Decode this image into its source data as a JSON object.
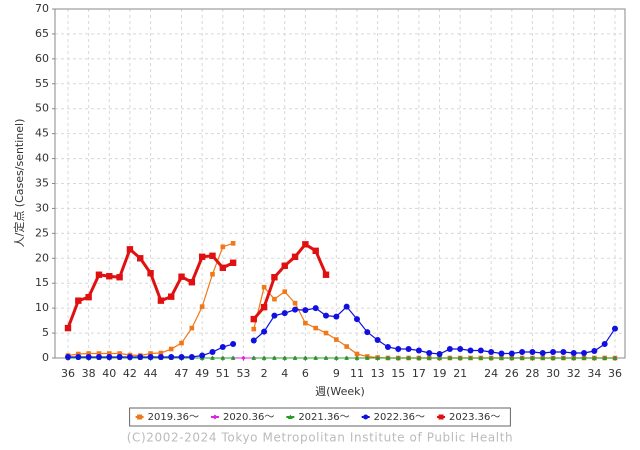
{
  "chart_data": {
    "type": "line",
    "ylabel": "人/定点 (Cases/sentinel)",
    "xlabel": "週(Week)",
    "footer": "(C)2002-2024 Tokyo Metropolitan Institute of Public Health",
    "categories": [
      "36",
      null,
      "38",
      null,
      "40",
      null,
      "42",
      null,
      "44",
      null,
      null,
      "47",
      null,
      "49",
      null,
      "51",
      null,
      "53",
      null,
      "2",
      null,
      "4",
      null,
      "6",
      null,
      null,
      "9",
      null,
      "11",
      null,
      "13",
      null,
      "15",
      null,
      "17",
      null,
      "19",
      null,
      "21",
      null,
      null,
      "24",
      null,
      "26",
      null,
      "28",
      null,
      "30",
      null,
      "32",
      null,
      "34",
      null,
      "36"
    ],
    "ylim": [
      0,
      70
    ],
    "yticks": [
      0,
      5,
      10,
      15,
      20,
      25,
      30,
      35,
      40,
      45,
      50,
      55,
      60,
      65,
      70
    ],
    "grid": true,
    "legend": "bottom",
    "series": [
      {
        "name": "2019.36～",
        "color": "#f07818",
        "marker": "square",
        "line_width": 1.2,
        "values": [
          0.5,
          0.8,
          0.9,
          0.9,
          0.9,
          0.9,
          0.6,
          0.5,
          0.9,
          1,
          1.8,
          3,
          6,
          10.3,
          16.8,
          22.3,
          23,
          null,
          5.8,
          14.2,
          11.8,
          13.3,
          11,
          7,
          6,
          5,
          3.7,
          2.3,
          0.8,
          0.3,
          0.1,
          0,
          0,
          0,
          0,
          0,
          0,
          0,
          0,
          0,
          0,
          0,
          0,
          0,
          0,
          0,
          0,
          0,
          0,
          0,
          0,
          0,
          0,
          0
        ]
      },
      {
        "name": "2020.36～",
        "color": "#e020e0",
        "marker": "diamond",
        "line_width": 1,
        "values": [
          0,
          0,
          0,
          0,
          0,
          0,
          0,
          0,
          0,
          0,
          0,
          0,
          0,
          0,
          0,
          0,
          0,
          0,
          0,
          0,
          0,
          0,
          0,
          0,
          0,
          0,
          0,
          0,
          0,
          0,
          0,
          0,
          0,
          0,
          0,
          0,
          0,
          0,
          0,
          0,
          0,
          0,
          0,
          0,
          0,
          0,
          0,
          0,
          0,
          0,
          0,
          0,
          0,
          0
        ]
      },
      {
        "name": "2021.36～",
        "color": "#20a020",
        "marker": "triangle",
        "line_width": 1,
        "values": [
          0,
          0,
          0,
          0,
          0,
          0,
          0,
          0,
          0,
          0,
          0,
          0,
          0,
          0,
          0,
          0,
          0,
          null,
          0,
          0,
          0,
          0,
          0,
          0,
          0,
          0,
          0,
          0,
          0,
          0,
          0,
          0,
          0,
          0,
          0,
          0,
          0,
          0,
          0,
          0,
          0,
          0,
          0,
          0,
          0,
          0,
          0,
          0,
          0,
          0,
          0,
          0,
          0,
          0
        ]
      },
      {
        "name": "2022.36～",
        "color": "#1010e0",
        "marker": "circle",
        "line_width": 1.2,
        "values": [
          0.2,
          0.2,
          0.2,
          0.2,
          0.2,
          0.2,
          0.2,
          0.2,
          0.2,
          0.2,
          0.2,
          0.2,
          0.2,
          0.5,
          1.2,
          2.2,
          2.8,
          null,
          3.5,
          5.3,
          8.5,
          9,
          9.7,
          9.6,
          10,
          8.5,
          8.3,
          10.3,
          7.8,
          5.2,
          3.6,
          2.2,
          1.8,
          1.8,
          1.5,
          1,
          0.8,
          1.8,
          1.8,
          1.5,
          1.5,
          1.2,
          0.9,
          0.9,
          1.2,
          1.2,
          1,
          1.2,
          1.2,
          1,
          1,
          1.4,
          2.8,
          5.9
        ]
      },
      {
        "name": "2023.36～",
        "color": "#e01010",
        "marker": "square",
        "line_width": 3,
        "values": [
          6,
          11.5,
          12.2,
          16.7,
          16.4,
          16.2,
          21.8,
          20,
          17,
          11.5,
          12.3,
          16.3,
          15.2,
          20.3,
          20.5,
          18.1,
          19.1,
          null,
          7.8,
          10.2,
          16.2,
          18.5,
          20.3,
          22.8,
          21.5,
          16.7,
          null,
          null,
          null,
          null,
          null,
          null,
          null,
          null,
          null,
          null,
          null,
          null,
          null,
          null,
          null,
          null,
          null,
          null,
          null,
          null,
          null,
          null,
          null,
          null,
          null,
          null,
          null,
          null
        ]
      }
    ]
  }
}
